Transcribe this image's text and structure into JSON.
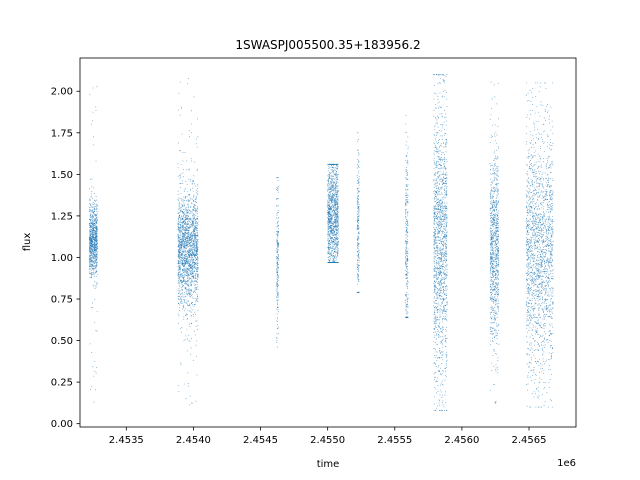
{
  "chart_data": {
    "type": "scatter",
    "title": "1SWASPJ005500.35+183956.2",
    "xlabel": "time",
    "ylabel": "flux",
    "x_offset_label": "1e6",
    "xlim": [
      2453155,
      2456850
    ],
    "ylim": [
      -0.02,
      2.2
    ],
    "x_ticks": [
      {
        "value": 2453500,
        "label": "2.4535"
      },
      {
        "value": 2454000,
        "label": "2.4540"
      },
      {
        "value": 2454500,
        "label": "2.4545"
      },
      {
        "value": 2455000,
        "label": "2.4550"
      },
      {
        "value": 2455500,
        "label": "2.4555"
      },
      {
        "value": 2456000,
        "label": "2.4560"
      },
      {
        "value": 2456500,
        "label": "2.4565"
      }
    ],
    "y_ticks": [
      {
        "value": 0.0,
        "label": "0.00"
      },
      {
        "value": 0.25,
        "label": "0.25"
      },
      {
        "value": 0.5,
        "label": "0.50"
      },
      {
        "value": 0.75,
        "label": "0.75"
      },
      {
        "value": 1.0,
        "label": "1.00"
      },
      {
        "value": 1.25,
        "label": "1.25"
      },
      {
        "value": 1.5,
        "label": "1.50"
      },
      {
        "value": 1.75,
        "label": "1.75"
      },
      {
        "value": 2.0,
        "label": "2.00"
      }
    ],
    "grid": false,
    "marker_color": "#1f77b4",
    "clusters": [
      {
        "x_start": 2453225,
        "x_end": 2453285,
        "median": 1.1,
        "spread_p10": 0.98,
        "spread_p90": 1.26,
        "min": 0.1,
        "max": 2.08
      },
      {
        "x_start": 2453885,
        "x_end": 2454035,
        "median": 1.05,
        "spread_p10": 0.85,
        "spread_p90": 1.3,
        "min": 0.09,
        "max": 2.1
      },
      {
        "x_start": 2454620,
        "x_end": 2454635,
        "median": 1.0,
        "spread_p10": 0.8,
        "spread_p90": 1.4,
        "min": 0.46,
        "max": 1.48
      },
      {
        "x_start": 2455000,
        "x_end": 2455080,
        "median": 1.25,
        "spread_p10": 1.05,
        "spread_p90": 1.5,
        "min": 0.97,
        "max": 1.56
      },
      {
        "x_start": 2455220,
        "x_end": 2455235,
        "median": 1.15,
        "spread_p10": 0.9,
        "spread_p90": 1.5,
        "min": 0.79,
        "max": 1.75
      },
      {
        "x_start": 2455580,
        "x_end": 2455600,
        "median": 1.05,
        "spread_p10": 0.8,
        "spread_p90": 1.6,
        "min": 0.64,
        "max": 1.9
      },
      {
        "x_start": 2455790,
        "x_end": 2455890,
        "median": 1.1,
        "spread_p10": 0.55,
        "spread_p90": 1.65,
        "min": 0.08,
        "max": 2.1
      },
      {
        "x_start": 2456210,
        "x_end": 2456275,
        "median": 1.05,
        "spread_p10": 0.7,
        "spread_p90": 1.4,
        "min": 0.1,
        "max": 2.1
      },
      {
        "x_start": 2456480,
        "x_end": 2456680,
        "median": 1.05,
        "spread_p10": 0.6,
        "spread_p90": 1.55,
        "min": 0.1,
        "max": 2.05
      }
    ]
  }
}
